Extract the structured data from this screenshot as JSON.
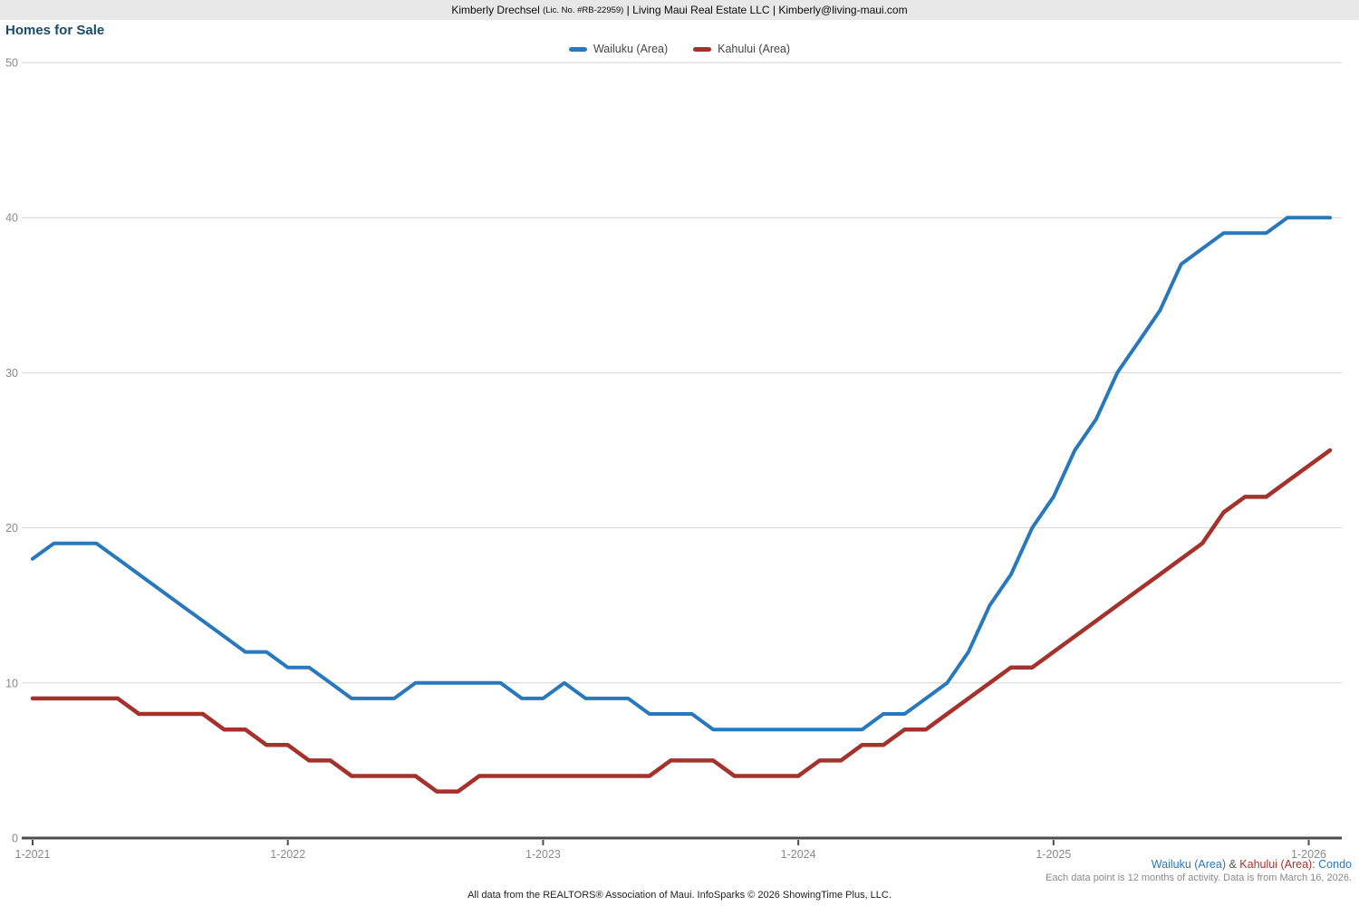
{
  "header": {
    "agent": "Kimberly Drechsel",
    "license": "(Lic. No. #RB-22959)",
    "sep1": "|",
    "company": "Living Maui Real Estate LLC",
    "sep2": "|",
    "email": "Kimberly@living-maui.com"
  },
  "title": "Homes for Sale",
  "legend": [
    {
      "label": "Wailuku (Area)",
      "color": "#2878BE"
    },
    {
      "label": "Kahului (Area)",
      "color": "#A5312D"
    }
  ],
  "chart_data": {
    "type": "line",
    "title": "Homes for Sale",
    "xlabel": "",
    "ylabel": "",
    "ylim": [
      0,
      50
    ],
    "yticks": [
      0,
      10,
      20,
      30,
      40,
      50
    ],
    "grid": "horizontal",
    "legend_position": "top-center",
    "x": [
      "1-2021",
      "2-2021",
      "3-2021",
      "4-2021",
      "5-2021",
      "6-2021",
      "7-2021",
      "8-2021",
      "9-2021",
      "10-2021",
      "11-2021",
      "12-2021",
      "1-2022",
      "2-2022",
      "3-2022",
      "4-2022",
      "5-2022",
      "6-2022",
      "7-2022",
      "8-2022",
      "9-2022",
      "10-2022",
      "11-2022",
      "12-2022",
      "1-2023",
      "2-2023",
      "3-2023",
      "4-2023",
      "5-2023",
      "6-2023",
      "7-2023",
      "8-2023",
      "9-2023",
      "10-2023",
      "11-2023",
      "12-2023",
      "1-2024",
      "2-2024",
      "3-2024",
      "4-2024",
      "5-2024",
      "6-2024",
      "7-2024",
      "8-2024",
      "9-2024",
      "10-2024",
      "11-2024",
      "12-2024",
      "1-2025",
      "2-2025",
      "3-2025",
      "4-2025",
      "5-2025",
      "6-2025",
      "7-2025",
      "8-2025",
      "9-2025",
      "10-2025",
      "11-2025",
      "12-2025",
      "1-2026",
      "2-2026"
    ],
    "x_tick_indices": [
      0,
      12,
      24,
      36,
      48,
      60
    ],
    "x_tick_labels": [
      "1-2021",
      "1-2022",
      "1-2023",
      "1-2024",
      "1-2025",
      "1-2026"
    ],
    "series": [
      {
        "name": "Wailuku (Area)",
        "color": "#2878BE",
        "values": [
          18,
          19,
          19,
          19,
          18,
          17,
          16,
          15,
          14,
          13,
          12,
          12,
          11,
          11,
          10,
          9,
          9,
          9,
          10,
          10,
          10,
          10,
          10,
          9,
          9,
          10,
          9,
          9,
          9,
          8,
          8,
          8,
          7,
          7,
          7,
          7,
          7,
          7,
          7,
          7,
          8,
          8,
          9,
          10,
          12,
          15,
          17,
          20,
          22,
          25,
          27,
          30,
          32,
          34,
          37,
          38,
          39,
          39,
          39,
          40,
          40,
          40
        ]
      },
      {
        "name": "Kahului (Area)",
        "color": "#A5312D",
        "values": [
          9,
          9,
          9,
          9,
          9,
          8,
          8,
          8,
          8,
          7,
          7,
          6,
          6,
          5,
          5,
          4,
          4,
          4,
          4,
          3,
          3,
          4,
          4,
          4,
          4,
          4,
          4,
          4,
          4,
          4,
          5,
          5,
          5,
          4,
          4,
          4,
          4,
          5,
          5,
          6,
          6,
          7,
          7,
          8,
          9,
          10,
          11,
          11,
          12,
          13,
          14,
          15,
          16,
          17,
          18,
          19,
          21,
          22,
          22,
          23,
          24,
          25
        ]
      }
    ]
  },
  "footnote": {
    "series_parts": [
      {
        "text": "Wailuku (Area)",
        "color": "#2878BE"
      },
      {
        "text": " & ",
        "color": "#555555"
      },
      {
        "text": "Kahului (Area)",
        "color": "#A5312D"
      },
      {
        "text": ": ",
        "color": "#555555"
      },
      {
        "text": "Condo",
        "color": "#2878BE"
      }
    ],
    "data_line": "Each data point is 12 months of activity. Data is from March 16, 2026."
  },
  "footer": "All data from the REALTORS® Association of Maui. InfoSparks © 2026 ShowingTime Plus, LLC."
}
